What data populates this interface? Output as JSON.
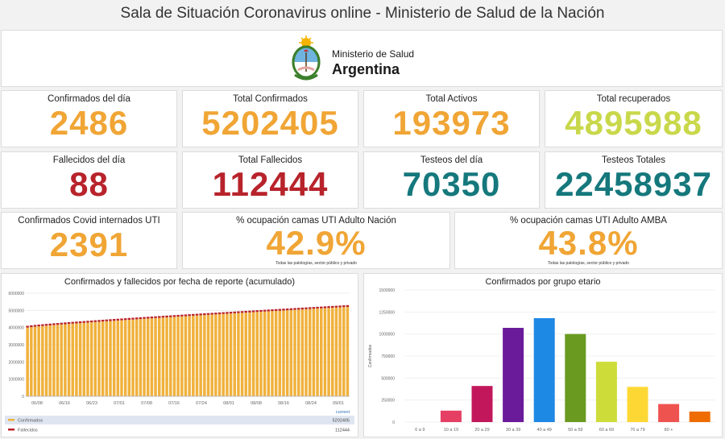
{
  "header": {
    "title": "Sala de Situación Coronavirus online - Ministerio de Salud de la Nación"
  },
  "logo": {
    "line1": "Ministerio de Salud",
    "line2": "Argentina"
  },
  "kpis": {
    "confirmados_dia": {
      "label": "Confirmados del día",
      "value": "2486",
      "color": "#f0a535"
    },
    "total_confirmados": {
      "label": "Total Confirmados",
      "value": "5202405",
      "color": "#f0a535"
    },
    "total_activos": {
      "label": "Total Activos",
      "value": "193973",
      "color": "#f0a535"
    },
    "total_recuperados": {
      "label": "Total recuperados",
      "value": "4895988",
      "color": "#c9d84a"
    },
    "fallecidos_dia": {
      "label": "Fallecidos del día",
      "value": "88",
      "color": "#b8232b"
    },
    "total_fallecidos": {
      "label": "Total Fallecidos",
      "value": "112444",
      "color": "#b8232b"
    },
    "testeos_dia": {
      "label": "Testeos del día",
      "value": "70350",
      "color": "#15787c"
    },
    "testeos_totales": {
      "label": "Testeos Totales",
      "value": "22458937",
      "color": "#15787c"
    },
    "internados_uti": {
      "label": "Confirmados Covid internados UTI",
      "value": "2391",
      "color": "#f0a535"
    },
    "ocupacion_nacion": {
      "label": "% ocupación camas UTI Adulto Nación",
      "value": "42.9%",
      "note": "Todas las patologías, sector público y privado",
      "color": "#f0a535"
    },
    "ocupacion_amba": {
      "label": "% ocupación camas UTI Adulto AMBA",
      "value": "43.8%",
      "note": "Todas las patologías, sector público y privado",
      "color": "#f0a535"
    }
  },
  "chart_data": [
    {
      "type": "bar",
      "title": "Confirmados y fallecidos por fecha de reporte (acumulado)",
      "x_ticks": [
        "06/08",
        "06/16",
        "06/23",
        "07/01",
        "07/08",
        "07/16",
        "07/24",
        "08/01",
        "08/08",
        "08/16",
        "08/24",
        "09/01"
      ],
      "y_ticks": [
        "0",
        "1000000",
        "2000000",
        "3000000",
        "4000000",
        "5000000",
        "6000000"
      ],
      "ylim": [
        0,
        6000000
      ],
      "series": [
        {
          "name": "Confirmados",
          "color": "#f0b13c",
          "start": 4000000,
          "end": 5202405,
          "count": 86
        },
        {
          "name": "Fallecidos",
          "color": "#b8232b",
          "start": 82000,
          "end": 112444,
          "count": 86
        }
      ],
      "legend": {
        "header": "current",
        "rows": [
          {
            "name": "Confirmados",
            "value": "5202405",
            "color": "#f0b13c"
          },
          {
            "name": "Fallecidos",
            "value": "112444",
            "color": "#b8232b"
          }
        ]
      }
    },
    {
      "type": "bar",
      "title": "Confirmados por grupo etario",
      "ylabel": "Confirmados",
      "categories": [
        "0 a 9",
        "10 a 19",
        "20 a 29",
        "30 a 39",
        "40 a 49",
        "50 a 59",
        "60 a 69",
        "70 a 79",
        "80 +",
        ""
      ],
      "values": [
        0,
        130000,
        410000,
        1070000,
        1180000,
        1000000,
        685000,
        400000,
        205000,
        120000
      ],
      "colors": [
        "#e53f64",
        "#e53f64",
        "#c2185b",
        "#6a1b9a",
        "#1e88e5",
        "#6a9a1f",
        "#cddc39",
        "#fdd835",
        "#ef5350",
        "#ef6c00"
      ],
      "y_ticks": [
        "0",
        "250000",
        "500000",
        "750000",
        "1000000",
        "1250000",
        "1500000"
      ],
      "ylim": [
        0,
        1500000
      ]
    }
  ]
}
